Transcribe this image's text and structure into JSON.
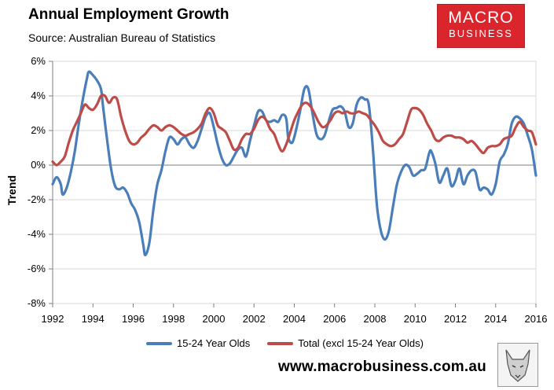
{
  "header": {
    "title": "Annual Employment Growth",
    "subtitle": "Source: Australian Bureau of Statistics"
  },
  "logo": {
    "line1": "MACRO",
    "line2": "BUSINESS"
  },
  "footer": {
    "website": "www.macrobusiness.com.au"
  },
  "colors": {
    "youth": "#4a7ebb",
    "total": "#be4b48",
    "grid": "#d9d9d9",
    "axis": "#7f7f7f",
    "logo": "#d9252b"
  },
  "chart_data": {
    "type": "line",
    "title": "Annual Employment Growth",
    "xlabel": "",
    "ylabel": "Trend",
    "xlim": [
      1992,
      2016
    ],
    "ylim": [
      -8,
      6
    ],
    "x_ticks": [
      1992,
      1994,
      1996,
      1998,
      2000,
      2002,
      2004,
      2006,
      2008,
      2010,
      2012,
      2014,
      2016
    ],
    "x_tick_labels": [
      "1992",
      "1994",
      "1996",
      "1998",
      "2000",
      "2002",
      "2004",
      "2006",
      "2008",
      "2010",
      "2012",
      "2014",
      "2016"
    ],
    "y_ticks": [
      -8,
      -6,
      -4,
      -2,
      0,
      2,
      4,
      6
    ],
    "y_tick_labels": [
      "-8%",
      "-6%",
      "-4%",
      "-2%",
      "0%",
      "2%",
      "4%",
      "6%"
    ],
    "grid": "horizontal",
    "legend": "bottom",
    "series": [
      {
        "name": "15-24 Year Olds",
        "color": "#4a7ebb",
        "points": [
          [
            1992.0,
            -1.1
          ],
          [
            1992.2,
            -0.7
          ],
          [
            1992.4,
            -1.1
          ],
          [
            1992.5,
            -1.7
          ],
          [
            1992.7,
            -1.3
          ],
          [
            1992.9,
            -0.4
          ],
          [
            1993.1,
            0.8
          ],
          [
            1993.3,
            2.4
          ],
          [
            1993.5,
            3.8
          ],
          [
            1993.7,
            5.0
          ],
          [
            1993.8,
            5.4
          ],
          [
            1994.0,
            5.2
          ],
          [
            1994.2,
            4.9
          ],
          [
            1994.4,
            4.4
          ],
          [
            1994.5,
            3.4
          ],
          [
            1994.7,
            1.5
          ],
          [
            1994.9,
            -0.2
          ],
          [
            1995.1,
            -1.2
          ],
          [
            1995.3,
            -1.4
          ],
          [
            1995.5,
            -1.3
          ],
          [
            1995.7,
            -1.6
          ],
          [
            1995.9,
            -2.2
          ],
          [
            1996.1,
            -2.6
          ],
          [
            1996.3,
            -3.3
          ],
          [
            1996.5,
            -4.6
          ],
          [
            1996.6,
            -5.2
          ],
          [
            1996.8,
            -4.5
          ],
          [
            1997.0,
            -2.6
          ],
          [
            1997.2,
            -1.1
          ],
          [
            1997.4,
            -0.3
          ],
          [
            1997.6,
            0.8
          ],
          [
            1997.8,
            1.6
          ],
          [
            1998.0,
            1.5
          ],
          [
            1998.2,
            1.2
          ],
          [
            1998.4,
            1.5
          ],
          [
            1998.6,
            1.6
          ],
          [
            1998.8,
            1.2
          ],
          [
            1999.0,
            1.0
          ],
          [
            1999.2,
            1.4
          ],
          [
            1999.4,
            2.1
          ],
          [
            1999.6,
            2.8
          ],
          [
            1999.8,
            3.0
          ],
          [
            2000.0,
            2.2
          ],
          [
            2000.2,
            1.2
          ],
          [
            2000.4,
            0.4
          ],
          [
            2000.6,
            0.0
          ],
          [
            2000.8,
            0.1
          ],
          [
            2001.0,
            0.5
          ],
          [
            2001.2,
            0.9
          ],
          [
            2001.4,
            1.0
          ],
          [
            2001.6,
            0.5
          ],
          [
            2001.8,
            1.4
          ],
          [
            2002.0,
            2.3
          ],
          [
            2002.2,
            3.1
          ],
          [
            2002.4,
            3.1
          ],
          [
            2002.6,
            2.6
          ],
          [
            2002.8,
            2.5
          ],
          [
            2003.0,
            2.6
          ],
          [
            2003.2,
            2.5
          ],
          [
            2003.4,
            2.9
          ],
          [
            2003.6,
            2.7
          ],
          [
            2003.7,
            1.6
          ],
          [
            2003.9,
            1.3
          ],
          [
            2004.1,
            2.1
          ],
          [
            2004.3,
            3.2
          ],
          [
            2004.5,
            4.4
          ],
          [
            2004.7,
            4.4
          ],
          [
            2004.9,
            3.0
          ],
          [
            2005.1,
            1.8
          ],
          [
            2005.3,
            1.5
          ],
          [
            2005.5,
            1.7
          ],
          [
            2005.7,
            2.5
          ],
          [
            2005.9,
            3.2
          ],
          [
            2006.1,
            3.3
          ],
          [
            2006.3,
            3.4
          ],
          [
            2006.5,
            3.1
          ],
          [
            2006.7,
            2.2
          ],
          [
            2006.9,
            2.4
          ],
          [
            2007.1,
            3.5
          ],
          [
            2007.3,
            3.9
          ],
          [
            2007.5,
            3.8
          ],
          [
            2007.7,
            3.5
          ],
          [
            2007.9,
            1.0
          ],
          [
            2008.1,
            -2.3
          ],
          [
            2008.3,
            -3.8
          ],
          [
            2008.5,
            -4.3
          ],
          [
            2008.7,
            -3.8
          ],
          [
            2008.9,
            -2.4
          ],
          [
            2009.1,
            -1.1
          ],
          [
            2009.3,
            -0.4
          ],
          [
            2009.5,
            0.0
          ],
          [
            2009.7,
            -0.1
          ],
          [
            2009.9,
            -0.6
          ],
          [
            2010.1,
            -0.5
          ],
          [
            2010.3,
            -0.3
          ],
          [
            2010.5,
            -0.2
          ],
          [
            2010.7,
            0.7
          ],
          [
            2010.8,
            0.8
          ],
          [
            2011.0,
            0.1
          ],
          [
            2011.2,
            -1.0
          ],
          [
            2011.4,
            -0.6
          ],
          [
            2011.6,
            -0.2
          ],
          [
            2011.8,
            -1.2
          ],
          [
            2012.0,
            -0.9
          ],
          [
            2012.2,
            -0.2
          ],
          [
            2012.4,
            -1.1
          ],
          [
            2012.6,
            -0.6
          ],
          [
            2012.8,
            -0.3
          ],
          [
            2013.0,
            -0.4
          ],
          [
            2013.2,
            -1.4
          ],
          [
            2013.4,
            -1.3
          ],
          [
            2013.6,
            -1.4
          ],
          [
            2013.8,
            -1.7
          ],
          [
            2014.0,
            -1.1
          ],
          [
            2014.2,
            0.2
          ],
          [
            2014.4,
            0.6
          ],
          [
            2014.6,
            1.2
          ],
          [
            2014.8,
            2.4
          ],
          [
            2015.0,
            2.8
          ],
          [
            2015.2,
            2.7
          ],
          [
            2015.4,
            2.4
          ],
          [
            2015.6,
            1.7
          ],
          [
            2015.8,
            0.9
          ],
          [
            2016.0,
            -0.6
          ]
        ]
      },
      {
        "name": "Total (excl 15-24 Year Olds)",
        "color": "#be4b48",
        "points": [
          [
            1992.0,
            0.2
          ],
          [
            1992.2,
            0.0
          ],
          [
            1992.4,
            0.2
          ],
          [
            1992.6,
            0.5
          ],
          [
            1992.8,
            1.3
          ],
          [
            1993.0,
            2.0
          ],
          [
            1993.2,
            2.5
          ],
          [
            1993.4,
            3.0
          ],
          [
            1993.6,
            3.5
          ],
          [
            1993.8,
            3.3
          ],
          [
            1994.0,
            3.2
          ],
          [
            1994.2,
            3.5
          ],
          [
            1994.4,
            4.0
          ],
          [
            1994.6,
            4.0
          ],
          [
            1994.8,
            3.6
          ],
          [
            1995.0,
            3.9
          ],
          [
            1995.2,
            3.8
          ],
          [
            1995.4,
            2.8
          ],
          [
            1995.6,
            2.0
          ],
          [
            1995.8,
            1.4
          ],
          [
            1996.0,
            1.2
          ],
          [
            1996.2,
            1.3
          ],
          [
            1996.4,
            1.6
          ],
          [
            1996.6,
            1.8
          ],
          [
            1996.8,
            2.1
          ],
          [
            1997.0,
            2.3
          ],
          [
            1997.2,
            2.2
          ],
          [
            1997.4,
            2.0
          ],
          [
            1997.6,
            2.2
          ],
          [
            1997.8,
            2.3
          ],
          [
            1998.0,
            2.2
          ],
          [
            1998.2,
            2.0
          ],
          [
            1998.4,
            1.8
          ],
          [
            1998.6,
            1.7
          ],
          [
            1998.8,
            1.8
          ],
          [
            1999.0,
            1.9
          ],
          [
            1999.2,
            2.1
          ],
          [
            1999.4,
            2.4
          ],
          [
            1999.6,
            3.0
          ],
          [
            1999.8,
            3.3
          ],
          [
            2000.0,
            3.0
          ],
          [
            2000.2,
            2.3
          ],
          [
            2000.4,
            2.1
          ],
          [
            2000.6,
            1.9
          ],
          [
            2000.8,
            1.4
          ],
          [
            2001.0,
            0.9
          ],
          [
            2001.2,
            1.0
          ],
          [
            2001.4,
            1.5
          ],
          [
            2001.6,
            1.8
          ],
          [
            2001.8,
            1.8
          ],
          [
            2002.0,
            2.1
          ],
          [
            2002.2,
            2.6
          ],
          [
            2002.4,
            2.8
          ],
          [
            2002.6,
            2.6
          ],
          [
            2002.8,
            2.1
          ],
          [
            2003.0,
            1.8
          ],
          [
            2003.2,
            1.2
          ],
          [
            2003.4,
            0.8
          ],
          [
            2003.6,
            1.2
          ],
          [
            2003.8,
            1.9
          ],
          [
            2004.0,
            2.6
          ],
          [
            2004.2,
            3.1
          ],
          [
            2004.4,
            3.5
          ],
          [
            2004.6,
            3.6
          ],
          [
            2004.8,
            3.4
          ],
          [
            2005.0,
            3.0
          ],
          [
            2005.2,
            2.5
          ],
          [
            2005.4,
            2.2
          ],
          [
            2005.6,
            2.3
          ],
          [
            2005.8,
            2.6
          ],
          [
            2006.0,
            3.0
          ],
          [
            2006.2,
            3.1
          ],
          [
            2006.4,
            3.0
          ],
          [
            2006.6,
            3.1
          ],
          [
            2006.8,
            3.0
          ],
          [
            2007.0,
            3.0
          ],
          [
            2007.2,
            3.1
          ],
          [
            2007.4,
            3.0
          ],
          [
            2007.6,
            2.9
          ],
          [
            2007.8,
            2.6
          ],
          [
            2008.0,
            2.3
          ],
          [
            2008.2,
            1.9
          ],
          [
            2008.4,
            1.4
          ],
          [
            2008.6,
            1.2
          ],
          [
            2008.8,
            1.1
          ],
          [
            2009.0,
            1.2
          ],
          [
            2009.2,
            1.5
          ],
          [
            2009.4,
            1.8
          ],
          [
            2009.6,
            2.5
          ],
          [
            2009.8,
            3.2
          ],
          [
            2010.0,
            3.3
          ],
          [
            2010.2,
            3.2
          ],
          [
            2010.4,
            2.9
          ],
          [
            2010.6,
            2.4
          ],
          [
            2010.8,
            2.0
          ],
          [
            2011.0,
            1.5
          ],
          [
            2011.2,
            1.4
          ],
          [
            2011.4,
            1.6
          ],
          [
            2011.6,
            1.7
          ],
          [
            2011.8,
            1.7
          ],
          [
            2012.0,
            1.6
          ],
          [
            2012.2,
            1.6
          ],
          [
            2012.4,
            1.5
          ],
          [
            2012.6,
            1.3
          ],
          [
            2012.8,
            1.4
          ],
          [
            2013.0,
            1.2
          ],
          [
            2013.2,
            0.9
          ],
          [
            2013.4,
            0.7
          ],
          [
            2013.6,
            1.0
          ],
          [
            2013.8,
            1.1
          ],
          [
            2014.0,
            1.1
          ],
          [
            2014.2,
            1.2
          ],
          [
            2014.4,
            1.5
          ],
          [
            2014.6,
            1.6
          ],
          [
            2014.8,
            1.7
          ],
          [
            2015.0,
            2.2
          ],
          [
            2015.2,
            2.5
          ],
          [
            2015.4,
            2.2
          ],
          [
            2015.6,
            2.0
          ],
          [
            2015.8,
            1.9
          ],
          [
            2016.0,
            1.2
          ]
        ]
      }
    ]
  }
}
